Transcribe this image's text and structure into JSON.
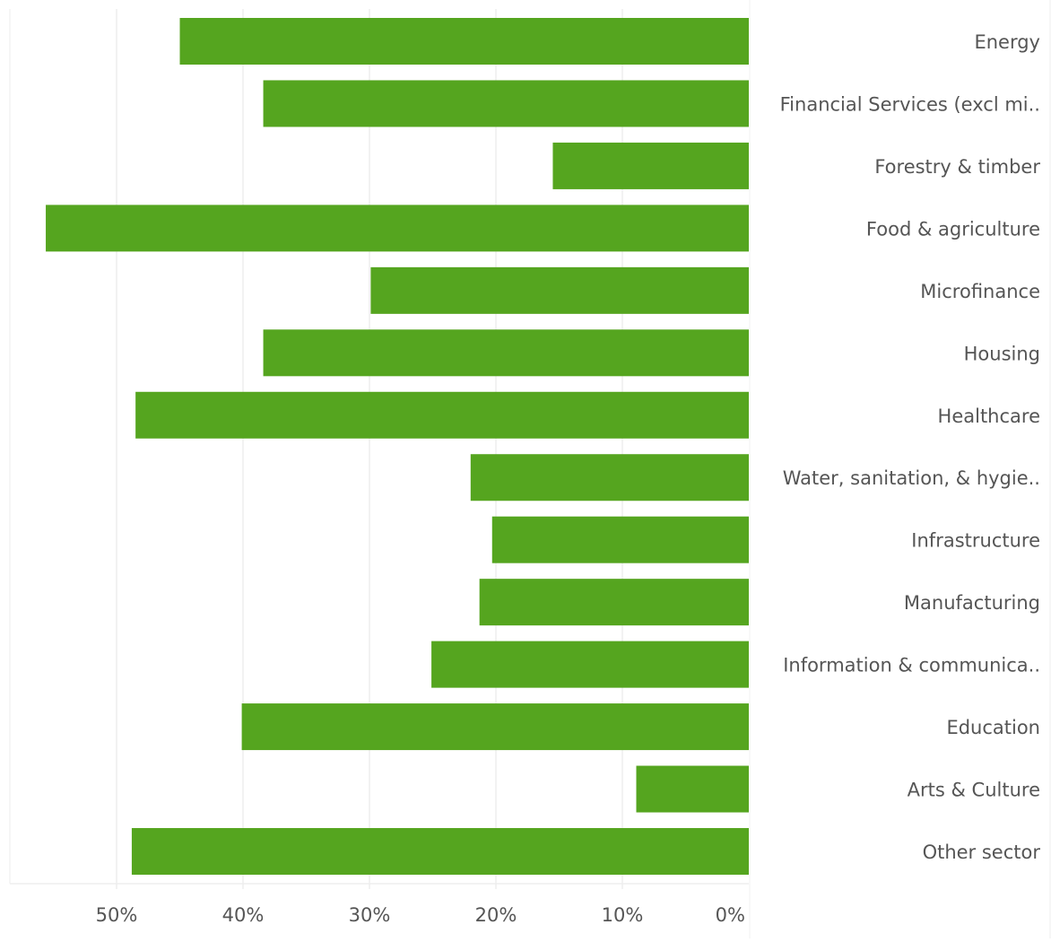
{
  "chart_data": {
    "type": "bar",
    "orientation": "horizontal",
    "x_direction": "reversed",
    "title": "",
    "xlabel": "",
    "ylabel": "",
    "categories": [
      "Energy",
      "Financial Services (excl mi..",
      "Forestry & timber",
      "Food & agriculture",
      "Microfinance",
      "Housing",
      "Healthcare",
      "Water, sanitation, & hygie..",
      "Infrastructure",
      "Manufacturing",
      "Information & communica..",
      "Education",
      "Arts & Culture",
      "Other sector"
    ],
    "values": [
      45.0,
      38.4,
      15.5,
      55.6,
      29.9,
      38.4,
      48.5,
      22.0,
      20.3,
      21.3,
      25.1,
      40.1,
      8.9,
      48.8
    ],
    "value_unit": "%",
    "xlim": [
      0,
      58.4
    ],
    "xticks": [
      0,
      10,
      20,
      30,
      40,
      50
    ],
    "xtick_labels": [
      "0%",
      "10%",
      "20%",
      "30%",
      "40%",
      "50%"
    ],
    "grid": true,
    "bar_color": "#55a51f",
    "grid_color": "#eeeeee"
  }
}
